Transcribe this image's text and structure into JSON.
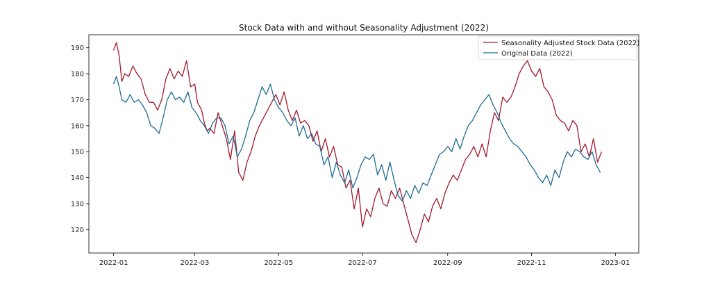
{
  "chart_data": {
    "type": "line",
    "title": "Stock Data with and without Seasonality Adjustment (2022)",
    "xlabel": "",
    "ylabel": "",
    "x_ticks": [
      "2022-01",
      "2022-03",
      "2022-05",
      "2022-07",
      "2022-09",
      "2022-11",
      "2023-01"
    ],
    "y_ticks": [
      120,
      130,
      140,
      150,
      160,
      170,
      180,
      190
    ],
    "xlim": [
      "2021-12-14",
      "2023-01-18"
    ],
    "ylim": [
      111,
      195
    ],
    "grid": false,
    "legend_position": "top-right",
    "series": [
      {
        "name": "Seasonality Adjusted Stock Data (2022)",
        "color": "#a3172b",
        "points": [
          [
            "2022-01-01",
            189
          ],
          [
            "2022-01-03",
            192
          ],
          [
            "2022-01-05",
            187
          ],
          [
            "2022-01-07",
            177
          ],
          [
            "2022-01-09",
            180
          ],
          [
            "2022-01-12",
            179
          ],
          [
            "2022-01-15",
            183
          ],
          [
            "2022-01-18",
            180
          ],
          [
            "2022-01-21",
            178
          ],
          [
            "2022-01-24",
            172
          ],
          [
            "2022-01-27",
            169
          ],
          [
            "2022-01-30",
            169
          ],
          [
            "2022-02-02",
            166
          ],
          [
            "2022-02-05",
            170
          ],
          [
            "2022-02-08",
            178
          ],
          [
            "2022-02-11",
            182
          ],
          [
            "2022-02-14",
            178
          ],
          [
            "2022-02-17",
            181
          ],
          [
            "2022-02-20",
            179
          ],
          [
            "2022-02-23",
            185
          ],
          [
            "2022-02-26",
            175
          ],
          [
            "2022-03-01",
            176
          ],
          [
            "2022-03-03",
            169
          ],
          [
            "2022-03-06",
            166
          ],
          [
            "2022-03-08",
            161
          ],
          [
            "2022-03-10",
            158
          ],
          [
            "2022-03-12",
            159
          ],
          [
            "2022-03-15",
            157
          ],
          [
            "2022-03-18",
            165
          ],
          [
            "2022-03-21",
            160
          ],
          [
            "2022-03-24",
            155
          ],
          [
            "2022-03-27",
            147
          ],
          [
            "2022-03-30",
            158
          ],
          [
            "2022-04-02",
            142
          ],
          [
            "2022-04-05",
            139
          ],
          [
            "2022-04-08",
            146
          ],
          [
            "2022-04-11",
            150
          ],
          [
            "2022-04-14",
            156
          ],
          [
            "2022-04-17",
            160
          ],
          [
            "2022-04-20",
            163
          ],
          [
            "2022-04-23",
            166
          ],
          [
            "2022-04-26",
            169
          ],
          [
            "2022-04-29",
            172
          ],
          [
            "2022-05-02",
            168
          ],
          [
            "2022-05-05",
            173
          ],
          [
            "2022-05-08",
            166
          ],
          [
            "2022-05-11",
            162
          ],
          [
            "2022-05-14",
            166
          ],
          [
            "2022-05-17",
            161
          ],
          [
            "2022-05-20",
            162
          ],
          [
            "2022-05-23",
            160
          ],
          [
            "2022-05-26",
            154
          ],
          [
            "2022-05-29",
            158
          ],
          [
            "2022-06-01",
            150
          ],
          [
            "2022-06-04",
            155
          ],
          [
            "2022-06-07",
            148
          ],
          [
            "2022-06-10",
            152
          ],
          [
            "2022-06-13",
            145
          ],
          [
            "2022-06-16",
            144
          ],
          [
            "2022-06-19",
            136
          ],
          [
            "2022-06-22",
            139
          ],
          [
            "2022-06-25",
            128
          ],
          [
            "2022-06-28",
            136
          ],
          [
            "2022-07-01",
            121
          ],
          [
            "2022-07-04",
            128
          ],
          [
            "2022-07-07",
            125
          ],
          [
            "2022-07-10",
            132
          ],
          [
            "2022-07-13",
            136
          ],
          [
            "2022-07-16",
            130
          ],
          [
            "2022-07-19",
            129
          ],
          [
            "2022-07-22",
            135
          ],
          [
            "2022-07-25",
            132
          ],
          [
            "2022-07-28",
            136
          ],
          [
            "2022-07-31",
            130
          ],
          [
            "2022-08-03",
            124
          ],
          [
            "2022-08-06",
            118
          ],
          [
            "2022-08-09",
            115
          ],
          [
            "2022-08-12",
            120
          ],
          [
            "2022-08-15",
            126
          ],
          [
            "2022-08-18",
            123
          ],
          [
            "2022-08-21",
            129
          ],
          [
            "2022-08-24",
            132
          ],
          [
            "2022-08-27",
            128
          ],
          [
            "2022-08-30",
            134
          ],
          [
            "2022-09-02",
            138
          ],
          [
            "2022-09-05",
            141
          ],
          [
            "2022-09-08",
            139
          ],
          [
            "2022-09-11",
            143
          ],
          [
            "2022-09-14",
            147
          ],
          [
            "2022-09-17",
            149
          ],
          [
            "2022-09-20",
            152
          ],
          [
            "2022-09-23",
            148
          ],
          [
            "2022-09-26",
            153
          ],
          [
            "2022-09-29",
            148
          ],
          [
            "2022-10-02",
            158
          ],
          [
            "2022-10-05",
            165
          ],
          [
            "2022-10-08",
            162
          ],
          [
            "2022-10-11",
            171
          ],
          [
            "2022-10-14",
            169
          ],
          [
            "2022-10-17",
            171
          ],
          [
            "2022-10-20",
            175
          ],
          [
            "2022-10-23",
            180
          ],
          [
            "2022-10-26",
            183
          ],
          [
            "2022-10-29",
            185
          ],
          [
            "2022-11-01",
            181
          ],
          [
            "2022-11-04",
            179
          ],
          [
            "2022-11-07",
            182
          ],
          [
            "2022-11-10",
            175
          ],
          [
            "2022-11-13",
            173
          ],
          [
            "2022-11-16",
            170
          ],
          [
            "2022-11-19",
            164
          ],
          [
            "2022-11-22",
            162
          ],
          [
            "2022-11-25",
            161
          ],
          [
            "2022-11-28",
            158
          ],
          [
            "2022-12-01",
            162
          ],
          [
            "2022-12-04",
            160
          ],
          [
            "2022-12-07",
            150
          ],
          [
            "2022-12-10",
            153
          ],
          [
            "2022-12-13",
            148
          ],
          [
            "2022-12-16",
            155
          ],
          [
            "2022-12-19",
            146
          ],
          [
            "2022-12-22",
            150
          ]
        ]
      },
      {
        "name": "Original Data (2022)",
        "color": "#1f6a93",
        "points": [
          [
            "2022-01-01",
            176
          ],
          [
            "2022-01-03",
            179
          ],
          [
            "2022-01-05",
            175
          ],
          [
            "2022-01-07",
            170
          ],
          [
            "2022-01-10",
            169
          ],
          [
            "2022-01-13",
            172
          ],
          [
            "2022-01-16",
            169
          ],
          [
            "2022-01-19",
            170
          ],
          [
            "2022-01-22",
            168
          ],
          [
            "2022-01-25",
            165
          ],
          [
            "2022-01-28",
            160
          ],
          [
            "2022-01-31",
            159
          ],
          [
            "2022-02-03",
            157
          ],
          [
            "2022-02-06",
            163
          ],
          [
            "2022-02-09",
            170
          ],
          [
            "2022-02-12",
            173
          ],
          [
            "2022-02-15",
            170
          ],
          [
            "2022-02-18",
            171
          ],
          [
            "2022-02-21",
            169
          ],
          [
            "2022-02-24",
            173
          ],
          [
            "2022-02-27",
            167
          ],
          [
            "2022-03-02",
            165
          ],
          [
            "2022-03-05",
            162
          ],
          [
            "2022-03-08",
            160
          ],
          [
            "2022-03-11",
            157
          ],
          [
            "2022-03-14",
            161
          ],
          [
            "2022-03-17",
            163
          ],
          [
            "2022-03-20",
            163
          ],
          [
            "2022-03-23",
            160
          ],
          [
            "2022-03-26",
            153
          ],
          [
            "2022-03-29",
            156
          ],
          [
            "2022-04-01",
            148
          ],
          [
            "2022-04-04",
            151
          ],
          [
            "2022-04-07",
            156
          ],
          [
            "2022-04-10",
            162
          ],
          [
            "2022-04-13",
            165
          ],
          [
            "2022-04-16",
            170
          ],
          [
            "2022-04-19",
            175
          ],
          [
            "2022-04-22",
            172
          ],
          [
            "2022-04-25",
            176
          ],
          [
            "2022-04-28",
            170
          ],
          [
            "2022-05-01",
            167
          ],
          [
            "2022-05-04",
            165
          ],
          [
            "2022-05-07",
            162
          ],
          [
            "2022-05-10",
            160
          ],
          [
            "2022-05-13",
            163
          ],
          [
            "2022-05-16",
            156
          ],
          [
            "2022-05-19",
            160
          ],
          [
            "2022-05-22",
            155
          ],
          [
            "2022-05-25",
            157
          ],
          [
            "2022-05-28",
            153
          ],
          [
            "2022-05-31",
            152
          ],
          [
            "2022-06-03",
            145
          ],
          [
            "2022-06-06",
            148
          ],
          [
            "2022-06-09",
            140
          ],
          [
            "2022-06-12",
            146
          ],
          [
            "2022-06-15",
            141
          ],
          [
            "2022-06-18",
            138
          ],
          [
            "2022-06-21",
            143
          ],
          [
            "2022-06-24",
            136
          ],
          [
            "2022-06-27",
            140
          ],
          [
            "2022-06-30",
            145
          ],
          [
            "2022-07-03",
            148
          ],
          [
            "2022-07-06",
            147
          ],
          [
            "2022-07-09",
            149
          ],
          [
            "2022-07-12",
            141
          ],
          [
            "2022-07-15",
            145
          ],
          [
            "2022-07-18",
            139
          ],
          [
            "2022-07-21",
            146
          ],
          [
            "2022-07-24",
            139
          ],
          [
            "2022-07-27",
            133
          ],
          [
            "2022-07-30",
            131
          ],
          [
            "2022-08-02",
            135
          ],
          [
            "2022-08-05",
            132
          ],
          [
            "2022-08-08",
            137
          ],
          [
            "2022-08-11",
            134
          ],
          [
            "2022-08-14",
            138
          ],
          [
            "2022-08-17",
            137
          ],
          [
            "2022-08-20",
            141
          ],
          [
            "2022-08-23",
            145
          ],
          [
            "2022-08-26",
            149
          ],
          [
            "2022-08-29",
            150
          ],
          [
            "2022-09-01",
            152
          ],
          [
            "2022-09-04",
            150
          ],
          [
            "2022-09-07",
            155
          ],
          [
            "2022-09-10",
            151
          ],
          [
            "2022-09-13",
            156
          ],
          [
            "2022-09-16",
            160
          ],
          [
            "2022-09-19",
            162
          ],
          [
            "2022-09-22",
            165
          ],
          [
            "2022-09-25",
            168
          ],
          [
            "2022-09-28",
            170
          ],
          [
            "2022-10-01",
            172
          ],
          [
            "2022-10-04",
            168
          ],
          [
            "2022-10-07",
            165
          ],
          [
            "2022-10-10",
            161
          ],
          [
            "2022-10-13",
            158
          ],
          [
            "2022-10-16",
            155
          ],
          [
            "2022-10-19",
            153
          ],
          [
            "2022-10-22",
            152
          ],
          [
            "2022-10-25",
            150
          ],
          [
            "2022-10-28",
            148
          ],
          [
            "2022-10-31",
            145
          ],
          [
            "2022-11-03",
            143
          ],
          [
            "2022-11-06",
            140
          ],
          [
            "2022-11-09",
            138
          ],
          [
            "2022-11-12",
            141
          ],
          [
            "2022-11-15",
            137
          ],
          [
            "2022-11-18",
            143
          ],
          [
            "2022-11-21",
            140
          ],
          [
            "2022-11-24",
            146
          ],
          [
            "2022-11-27",
            150
          ],
          [
            "2022-11-30",
            148
          ],
          [
            "2022-12-03",
            151
          ],
          [
            "2022-12-06",
            150
          ],
          [
            "2022-12-09",
            148
          ],
          [
            "2022-12-12",
            147
          ],
          [
            "2022-12-15",
            150
          ],
          [
            "2022-12-18",
            145
          ],
          [
            "2022-12-21",
            142
          ]
        ]
      }
    ]
  }
}
